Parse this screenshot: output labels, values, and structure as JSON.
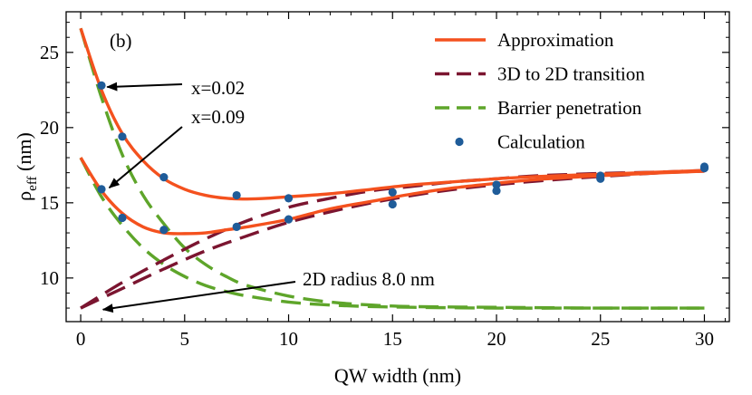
{
  "chart_data": {
    "type": "line",
    "panel_label": "(b)",
    "xlabel": "QW width (nm)",
    "ylabel_main": "ρ",
    "ylabel_sub": "eff",
    "ylabel_unit": " (nm)",
    "xlim": [
      -0.7,
      31.2
    ],
    "ylim": [
      7.1,
      27.7
    ],
    "xticks": [
      0,
      5,
      10,
      15,
      20,
      25,
      30
    ],
    "yticks": [
      10,
      15,
      20,
      25
    ],
    "colors": {
      "approximation": "#f4511e",
      "transition": "#7b1530",
      "barrier": "#5ea52a",
      "calculation": "#1f5c99",
      "arrow": "#000000"
    },
    "legend": {
      "position": "top-right",
      "entries": [
        {
          "label": "Approximation",
          "key": "approximation",
          "style": "solid"
        },
        {
          "label": "3D to 2D transition",
          "key": "transition",
          "style": "dashed"
        },
        {
          "label": "Barrier penetration",
          "key": "barrier",
          "style": "dashed"
        },
        {
          "label": "Calculation",
          "key": "calculation",
          "style": "marker"
        }
      ]
    },
    "series": [
      {
        "name": "Approximation",
        "group": "x=0.02",
        "key": "approximation",
        "style": "solid",
        "x": [
          0,
          1,
          2,
          3,
          4,
          5,
          6,
          7,
          8,
          9,
          10,
          12,
          14,
          16,
          18,
          20,
          22,
          25,
          28,
          30
        ],
        "y": [
          26.6,
          22.5,
          19.6,
          17.8,
          16.6,
          15.9,
          15.5,
          15.3,
          15.25,
          15.3,
          15.4,
          15.6,
          15.9,
          16.2,
          16.4,
          16.6,
          16.75,
          16.9,
          17.05,
          17.15
        ]
      },
      {
        "name": "Approximation",
        "group": "x=0.09",
        "key": "approximation",
        "style": "solid",
        "x": [
          0,
          1,
          2,
          3,
          4,
          5,
          6,
          7,
          8,
          10,
          12,
          14,
          16,
          18,
          20,
          22,
          25,
          28,
          30
        ],
        "y": [
          18.0,
          15.8,
          14.3,
          13.4,
          13.0,
          12.95,
          13.0,
          13.2,
          13.4,
          13.9,
          14.6,
          15.1,
          15.6,
          16.0,
          16.3,
          16.55,
          16.8,
          17.0,
          17.1
        ]
      },
      {
        "name": "3D to 2D transition",
        "group": "x=0.02",
        "key": "transition",
        "style": "dashed",
        "x": [
          0,
          2,
          4,
          6,
          8,
          10,
          12,
          14,
          16,
          18,
          20,
          22,
          25,
          28,
          30
        ],
        "y": [
          8.0,
          9.7,
          11.2,
          12.6,
          13.8,
          14.7,
          15.3,
          15.8,
          16.1,
          16.4,
          16.6,
          16.8,
          16.95,
          17.05,
          17.15
        ]
      },
      {
        "name": "3D to 2D transition",
        "group": "x=0.09",
        "key": "transition",
        "style": "dashed",
        "x": [
          0,
          2,
          4,
          6,
          8,
          10,
          12,
          14,
          16,
          18,
          20,
          22,
          25,
          28,
          30
        ],
        "y": [
          8.0,
          9.3,
          10.6,
          11.8,
          12.8,
          13.7,
          14.4,
          15.0,
          15.5,
          15.9,
          16.2,
          16.45,
          16.75,
          17.0,
          17.1
        ]
      },
      {
        "name": "Barrier penetration",
        "group": "x=0.02",
        "key": "barrier",
        "style": "dashed",
        "x": [
          0,
          1,
          2,
          3,
          4,
          5,
          6,
          7,
          8,
          10,
          12,
          14,
          16,
          20,
          25,
          30
        ],
        "y": [
          26.6,
          22.0,
          18.2,
          15.5,
          13.6,
          12.0,
          10.9,
          10.1,
          9.5,
          8.8,
          8.4,
          8.2,
          8.1,
          8.05,
          8.0,
          8.0
        ]
      },
      {
        "name": "Barrier penetration",
        "group": "x=0.09",
        "key": "barrier",
        "style": "dashed",
        "x": [
          0,
          1,
          2,
          3,
          4,
          5,
          6,
          7,
          8,
          10,
          12,
          14,
          16,
          20,
          25,
          30
        ],
        "y": [
          18.0,
          15.4,
          13.5,
          12.0,
          10.9,
          10.1,
          9.5,
          9.1,
          8.8,
          8.4,
          8.2,
          8.1,
          8.05,
          8.0,
          8.0,
          8.0
        ]
      },
      {
        "name": "Calculation",
        "group": "x=0.02",
        "key": "calculation",
        "style": "marker",
        "x": [
          1,
          2,
          4,
          7.5,
          10,
          15,
          20,
          25,
          30
        ],
        "y": [
          22.8,
          19.4,
          16.7,
          15.5,
          15.3,
          15.7,
          16.2,
          16.8,
          17.4
        ]
      },
      {
        "name": "Calculation",
        "group": "x=0.09",
        "key": "calculation",
        "style": "marker",
        "x": [
          1,
          2,
          4,
          7.5,
          10,
          15,
          20,
          25,
          30
        ],
        "y": [
          15.9,
          14.0,
          13.2,
          13.4,
          13.9,
          14.9,
          15.8,
          16.6,
          17.3
        ]
      }
    ],
    "annotations": [
      {
        "text": "x=0.02",
        "point_x": 1.1,
        "point_y": 22.7
      },
      {
        "text": "x=0.09",
        "point_x": 1.2,
        "point_y": 16.0
      },
      {
        "text": "2D radius 8.0 nm",
        "point_x": 0.9,
        "point_y": 7.9
      }
    ]
  }
}
